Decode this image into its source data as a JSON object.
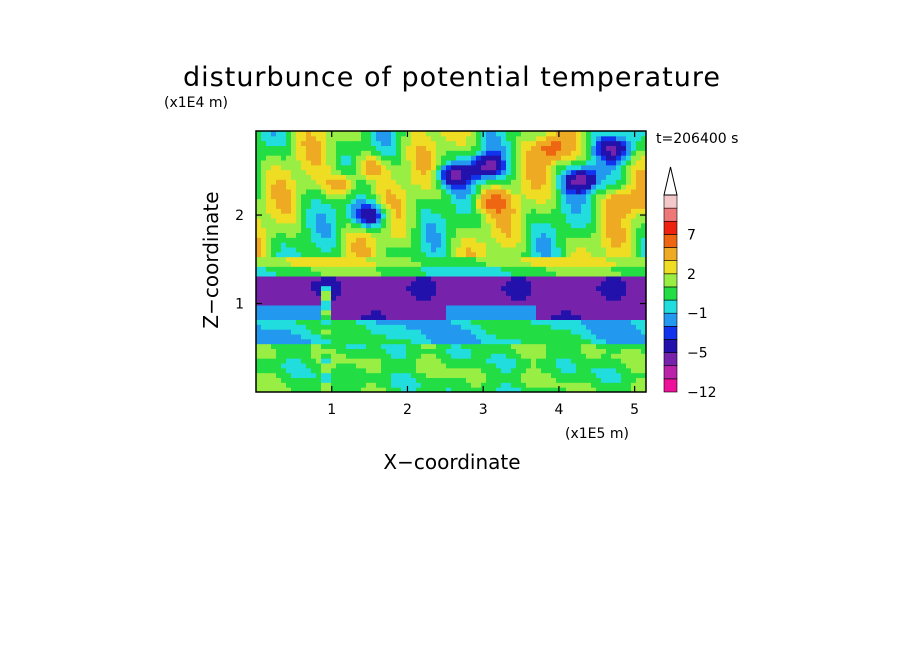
{
  "chart_data": {
    "type": "heatmap",
    "title": "disturbunce of potential temperature",
    "y_scale_label": "(x1E4 m)",
    "x_scale_label": "(x1E5 m)",
    "xlabel": "X−coordinate",
    "ylabel": "Z−coordinate",
    "time_label": "t=206400 s",
    "xlim": [
      0,
      5.15
    ],
    "ylim": [
      0,
      2.95
    ],
    "x_ticks": [
      {
        "value": 1,
        "label": "1"
      },
      {
        "value": 2,
        "label": "2"
      },
      {
        "value": 3,
        "label": "3"
      },
      {
        "value": 4,
        "label": "4"
      },
      {
        "value": 5,
        "label": "5"
      }
    ],
    "y_ticks": [
      {
        "value": 1,
        "label": "1"
      },
      {
        "value": 2,
        "label": "2"
      }
    ],
    "colorbar": {
      "extend_max": true,
      "levels": [
        -12,
        -9,
        -7,
        -5,
        -3,
        -2,
        -1,
        0,
        1,
        2,
        3,
        5,
        7,
        9,
        12
      ],
      "colors": [
        "#ee1199",
        "#bb22aa",
        "#7722aa",
        "#2211aa",
        "#1133ee",
        "#2299ee",
        "#22dddd",
        "#22dd44",
        "#99ee44",
        "#eedd22",
        "#eeaa22",
        "#ee6611",
        "#ee2211",
        "#ee7777",
        "#f4c8c8"
      ],
      "tick_labels": [
        {
          "level": -12,
          "label": "−12"
        },
        {
          "level": -5,
          "label": "−5"
        },
        {
          "level": -1,
          "label": "−1"
        },
        {
          "level": 2,
          "label": "2"
        },
        {
          "level": 7,
          "label": "7"
        }
      ]
    },
    "structure": {
      "cold_band_z_range": [
        0.82,
        1.32
      ],
      "cold_band_value": -5.5,
      "upper_anomalies": [
        {
          "x": 1.15,
          "z": 2.35,
          "value": 4
        },
        {
          "x": 1.5,
          "z": 2.55,
          "value": 3.5
        },
        {
          "x": 1.5,
          "z": 2.0,
          "value": -6
        },
        {
          "x": 2.6,
          "z": 2.45,
          "value": -5
        },
        {
          "x": 3.05,
          "z": 2.55,
          "value": -6
        },
        {
          "x": 3.1,
          "z": 2.15,
          "value": 4
        },
        {
          "x": 3.9,
          "z": 2.75,
          "value": 4
        },
        {
          "x": 4.3,
          "z": 2.4,
          "value": -6
        },
        {
          "x": 4.75,
          "z": 2.75,
          "value": -5
        },
        {
          "x": 4.85,
          "z": 2.15,
          "value": 3
        }
      ]
    }
  }
}
